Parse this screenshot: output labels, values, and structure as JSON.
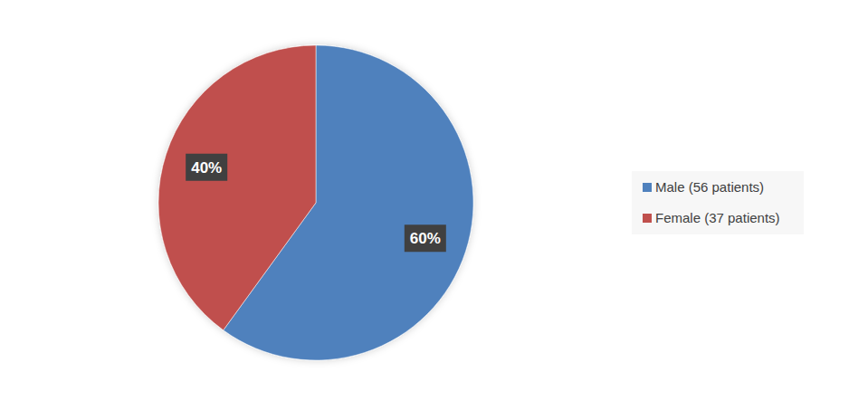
{
  "chart_data": {
    "type": "pie",
    "categories": [
      "Male (56 patients)",
      "Female (37 patients)"
    ],
    "values": [
      60,
      40
    ],
    "value_labels": [
      "60%",
      "40%"
    ],
    "colors": [
      "#4f81bd",
      "#c0504d"
    ],
    "data_labels": true,
    "legend": "right"
  }
}
